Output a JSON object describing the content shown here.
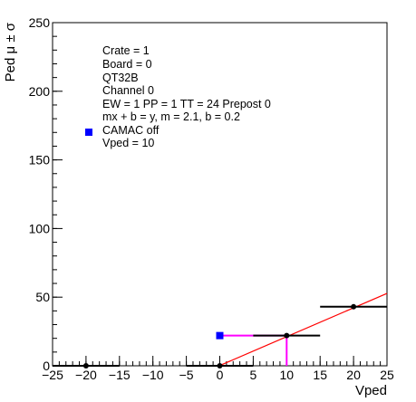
{
  "chart_data": {
    "type": "scatter",
    "xlabel": "Vped",
    "ylabel": "Ped μ ± σ",
    "xlim": [
      -25,
      25
    ],
    "ylim": [
      0,
      250
    ],
    "x_ticks": [
      "−25",
      "−20",
      "−15",
      "−10",
      "−5",
      "0",
      "5",
      "10",
      "15",
      "20",
      "25"
    ],
    "y_ticks": [
      "0",
      "50",
      "100",
      "150",
      "200",
      "250"
    ],
    "grid": false,
    "legend_position": "top-left",
    "info_lines": [
      "Crate = 1",
      "Board = 0",
      "QT32B",
      "Channel 0",
      "EW = 1 PP = 1 TT = 24 Prepost 0",
      "mx + b = y, m = 2.1, b = 0.2",
      "CAMAC off",
      "Vped = 10"
    ],
    "series": [
      {
        "name": "CAMAC off",
        "color": "#000000",
        "points": [
          {
            "x": -20,
            "y": 0,
            "x_err": 5
          },
          {
            "x": 0,
            "y": 0,
            "x_err": 5
          },
          {
            "x": 10,
            "y": 22,
            "x_err": 5
          },
          {
            "x": 20,
            "y": 43,
            "x_err": 5
          }
        ]
      },
      {
        "name": "Vped = 10",
        "color": "#0000ff",
        "points": [
          {
            "x": 0,
            "y": 22
          }
        ]
      }
    ],
    "fit_line": {
      "m": 2.1,
      "b": 0.2,
      "x_range": [
        0,
        25
      ],
      "color": "#ff0000"
    },
    "highlight": {
      "x": 10,
      "y": 22,
      "color": "#ff00ff"
    },
    "colors": {
      "marker_blue": "#0000ff",
      "fit_red": "#ff0000",
      "guide_magenta": "#ff00ff",
      "point_black": "#000000"
    }
  }
}
